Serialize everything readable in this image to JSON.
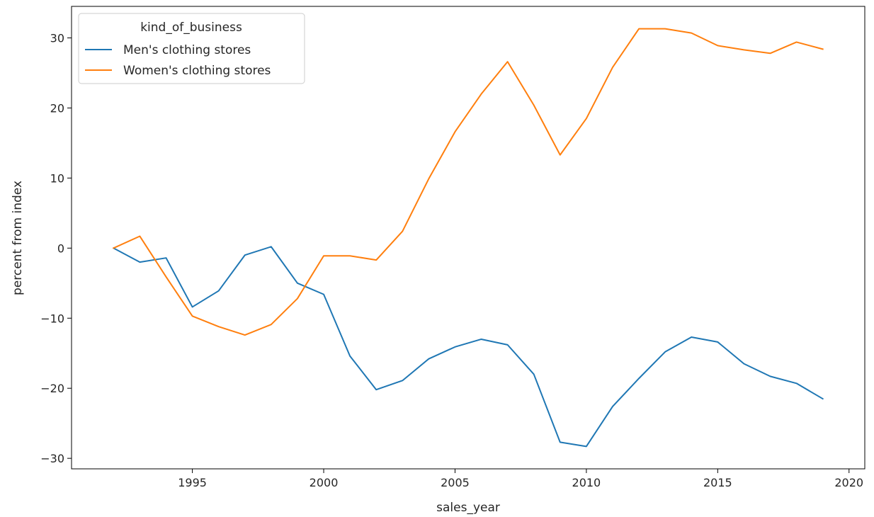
{
  "chart_data": {
    "type": "line",
    "title": "",
    "xlabel": "sales_year",
    "ylabel": "percent from index",
    "xlim": [
      1990.4,
      2020.6
    ],
    "ylim": [
      -31.5,
      34.5
    ],
    "xticks": [
      1995,
      2000,
      2005,
      2010,
      2015,
      2020
    ],
    "yticks": [
      -30,
      -20,
      -10,
      0,
      10,
      20,
      30
    ],
    "grid": false,
    "legend": {
      "title": "kind_of_business",
      "placement": "top-left"
    },
    "x": [
      1992,
      1993,
      1994,
      1995,
      1996,
      1997,
      1998,
      1999,
      2000,
      2001,
      2002,
      2003,
      2004,
      2005,
      2006,
      2007,
      2008,
      2009,
      2010,
      2011,
      2012,
      2013,
      2014,
      2015,
      2016,
      2017,
      2018,
      2019
    ],
    "series": [
      {
        "name": "Men's clothing stores",
        "color": "#1f77b4",
        "values": [
          0.0,
          -2.0,
          -1.4,
          -8.4,
          -6.1,
          -1.0,
          0.2,
          -5.0,
          -6.6,
          -15.4,
          -20.2,
          -18.9,
          -15.8,
          -14.1,
          -13.0,
          -13.8,
          -18.0,
          -27.7,
          -28.3,
          -22.6,
          -18.6,
          -14.8,
          -12.7,
          -13.4,
          -16.5,
          -18.3,
          -19.3,
          -21.5
        ]
      },
      {
        "name": "Women's clothing stores",
        "color": "#ff7f0e",
        "values": [
          0.0,
          1.7,
          -4.1,
          -9.7,
          -11.2,
          -12.4,
          -10.9,
          -7.2,
          -1.1,
          -1.1,
          -1.7,
          2.4,
          9.9,
          16.6,
          22.0,
          26.6,
          20.4,
          13.3,
          18.5,
          25.8,
          31.3,
          31.3,
          30.7,
          28.9,
          28.3,
          27.8,
          29.4,
          28.4
        ]
      }
    ]
  }
}
